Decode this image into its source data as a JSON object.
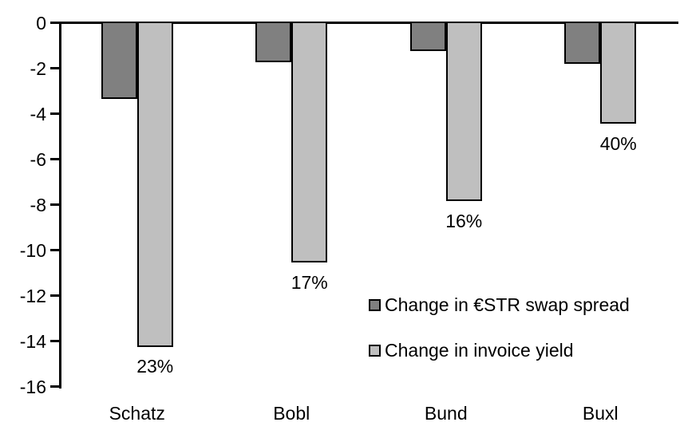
{
  "chart_data": {
    "type": "bar",
    "title": "",
    "xlabel": "",
    "ylabel": "",
    "categories": [
      "Schatz",
      "Bobl",
      "Bund",
      "Buxl"
    ],
    "series": [
      {
        "name": "Change in €STR swap spread",
        "color": "#808080",
        "values": [
          -3.3,
          -1.7,
          -1.2,
          -1.75
        ]
      },
      {
        "name": "Change in invoice yield",
        "color": "#BFBFBF",
        "values": [
          -14.2,
          -10.5,
          -7.8,
          -4.4
        ],
        "point_labels": [
          "23%",
          "17%",
          "16%",
          "40%"
        ]
      }
    ],
    "ylim": [
      -16,
      0
    ],
    "yticks": [
      0,
      -2,
      -4,
      -6,
      -8,
      -10,
      -12,
      -14,
      -16
    ],
    "grid": false,
    "bar_border_color": "#000000",
    "legend_position": "inside-bottom-right"
  }
}
